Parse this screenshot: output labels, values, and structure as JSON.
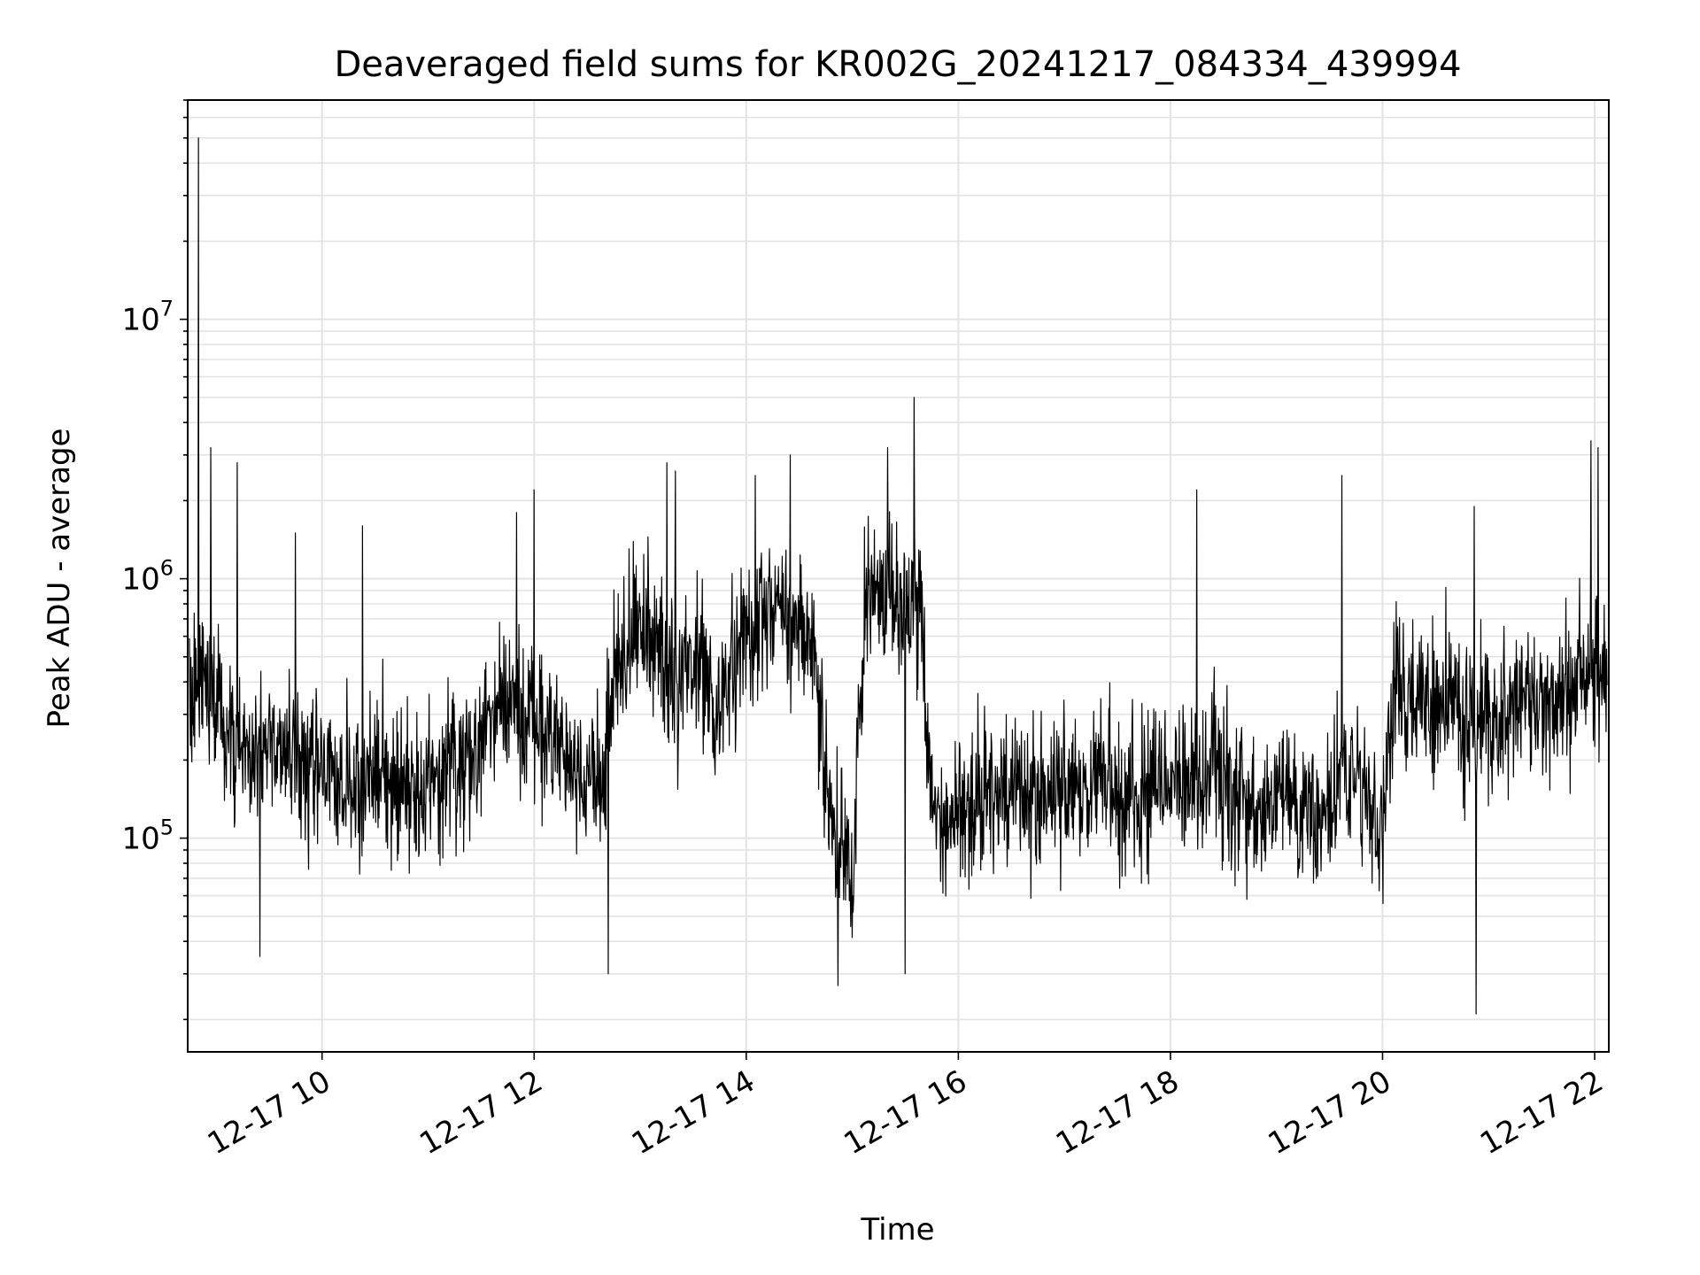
{
  "chart_data": {
    "type": "line",
    "title": "Deaveraged field sums for KR002G_20241217_084334_439994",
    "xlabel": "Time",
    "ylabel": "Peak ADU - average",
    "yscale": "log",
    "ylim": [
      15000,
      70000000
    ],
    "xlim": [
      "2024-12-17T08:44",
      "2024-12-17T22:08"
    ],
    "grid": true,
    "x_ticks": [
      {
        "value": "2024-12-17T10:00",
        "label": "12-17 10"
      },
      {
        "value": "2024-12-17T12:00",
        "label": "12-17 12"
      },
      {
        "value": "2024-12-17T14:00",
        "label": "12-17 14"
      },
      {
        "value": "2024-12-17T16:00",
        "label": "12-17 16"
      },
      {
        "value": "2024-12-17T18:00",
        "label": "12-17 18"
      },
      {
        "value": "2024-12-17T20:00",
        "label": "12-17 20"
      },
      {
        "value": "2024-12-17T22:00",
        "label": "12-17 22"
      }
    ],
    "y_ticks": [
      {
        "value": 100000,
        "base": "10",
        "exp": "5"
      },
      {
        "value": 1000000,
        "base": "10",
        "exp": "6"
      },
      {
        "value": 10000000,
        "base": "10",
        "exp": "7"
      }
    ],
    "color": "#000000",
    "series": [
      {
        "name": "",
        "x": [
          "2024-12-17T08:45",
          "2024-12-17T08:52",
          "2024-12-17T09:00",
          "2024-12-17T09:08",
          "2024-12-17T09:15",
          "2024-12-17T09:23",
          "2024-12-17T09:30",
          "2024-12-17T09:38",
          "2024-12-17T09:45",
          "2024-12-17T09:53",
          "2024-12-17T10:00",
          "2024-12-17T10:08",
          "2024-12-17T10:15",
          "2024-12-17T10:23",
          "2024-12-17T10:30",
          "2024-12-17T10:38",
          "2024-12-17T10:45",
          "2024-12-17T10:53",
          "2024-12-17T11:00",
          "2024-12-17T11:08",
          "2024-12-17T11:15",
          "2024-12-17T11:23",
          "2024-12-17T11:30",
          "2024-12-17T11:38",
          "2024-12-17T11:45",
          "2024-12-17T11:53",
          "2024-12-17T12:00",
          "2024-12-17T12:08",
          "2024-12-17T12:15",
          "2024-12-17T12:23",
          "2024-12-17T12:30",
          "2024-12-17T12:38",
          "2024-12-17T12:45",
          "2024-12-17T12:53",
          "2024-12-17T13:00",
          "2024-12-17T13:08",
          "2024-12-17T13:15",
          "2024-12-17T13:23",
          "2024-12-17T13:30",
          "2024-12-17T13:38",
          "2024-12-17T13:45",
          "2024-12-17T13:53",
          "2024-12-17T14:00",
          "2024-12-17T14:08",
          "2024-12-17T14:15",
          "2024-12-17T14:23",
          "2024-12-17T14:30",
          "2024-12-17T14:38",
          "2024-12-17T14:45",
          "2024-12-17T14:53",
          "2024-12-17T15:00",
          "2024-12-17T15:08",
          "2024-12-17T15:15",
          "2024-12-17T15:23",
          "2024-12-17T15:30",
          "2024-12-17T15:38",
          "2024-12-17T15:45",
          "2024-12-17T15:53",
          "2024-12-17T16:00",
          "2024-12-17T16:08",
          "2024-12-17T16:15",
          "2024-12-17T16:23",
          "2024-12-17T16:30",
          "2024-12-17T16:38",
          "2024-12-17T16:45",
          "2024-12-17T16:53",
          "2024-12-17T17:00",
          "2024-12-17T17:08",
          "2024-12-17T17:15",
          "2024-12-17T17:23",
          "2024-12-17T17:30",
          "2024-12-17T17:38",
          "2024-12-17T17:45",
          "2024-12-17T17:53",
          "2024-12-17T18:00",
          "2024-12-17T18:08",
          "2024-12-17T18:15",
          "2024-12-17T18:23",
          "2024-12-17T18:30",
          "2024-12-17T18:38",
          "2024-12-17T18:45",
          "2024-12-17T18:53",
          "2024-12-17T19:00",
          "2024-12-17T19:08",
          "2024-12-17T19:15",
          "2024-12-17T19:23",
          "2024-12-17T19:30",
          "2024-12-17T19:38",
          "2024-12-17T19:45",
          "2024-12-17T19:53",
          "2024-12-17T20:00",
          "2024-12-17T20:08",
          "2024-12-17T20:15",
          "2024-12-17T20:23",
          "2024-12-17T20:30",
          "2024-12-17T20:38",
          "2024-12-17T20:45",
          "2024-12-17T20:53",
          "2024-12-17T21:00",
          "2024-12-17T21:08",
          "2024-12-17T21:15",
          "2024-12-17T21:23",
          "2024-12-17T21:30",
          "2024-12-17T21:38",
          "2024-12-17T21:45",
          "2024-12-17T21:53",
          "2024-12-17T22:00",
          "2024-12-17T22:08"
        ],
        "y": [
          300000,
          400000,
          350000,
          300000,
          220000,
          200000,
          250000,
          220000,
          200000,
          180000,
          190000,
          170000,
          160000,
          150000,
          170000,
          160000,
          150000,
          140000,
          150000,
          160000,
          180000,
          200000,
          250000,
          300000,
          350000,
          320000,
          300000,
          250000,
          220000,
          200000,
          180000,
          160000,
          400000,
          600000,
          700000,
          500000,
          450000,
          400000,
          500000,
          450000,
          300000,
          500000,
          700000,
          800000,
          900000,
          700000,
          650000,
          600000,
          150000,
          90000,
          70000,
          900000,
          1000000,
          800000,
          700000,
          900000,
          130000,
          120000,
          130000,
          140000,
          150000,
          160000,
          150000,
          140000,
          150000,
          160000,
          150000,
          140000,
          160000,
          170000,
          150000,
          140000,
          150000,
          160000,
          170000,
          160000,
          170000,
          180000,
          160000,
          150000,
          140000,
          130000,
          150000,
          140000,
          130000,
          120000,
          150000,
          160000,
          170000,
          130000,
          120000,
          400000,
          350000,
          330000,
          300000,
          350000,
          300000,
          280000,
          270000,
          300000,
          320000,
          300000,
          330000,
          350000,
          380000,
          400000,
          450000,
          430000
        ],
        "spikes": [
          {
            "x": "2024-12-17T08:50",
            "y": 50000000
          },
          {
            "x": "2024-12-17T08:57",
            "y": 3200000
          },
          {
            "x": "2024-12-17T09:12",
            "y": 2800000
          },
          {
            "x": "2024-12-17T09:45",
            "y": 1500000
          },
          {
            "x": "2024-12-17T10:23",
            "y": 1600000
          },
          {
            "x": "2024-12-17T11:50",
            "y": 1800000
          },
          {
            "x": "2024-12-17T12:00",
            "y": 2200000
          },
          {
            "x": "2024-12-17T13:15",
            "y": 2800000
          },
          {
            "x": "2024-12-17T13:20",
            "y": 2600000
          },
          {
            "x": "2024-12-17T14:05",
            "y": 2500000
          },
          {
            "x": "2024-12-17T14:25",
            "y": 3000000
          },
          {
            "x": "2024-12-17T15:20",
            "y": 3200000
          },
          {
            "x": "2024-12-17T15:35",
            "y": 5000000
          },
          {
            "x": "2024-12-17T18:15",
            "y": 2200000
          },
          {
            "x": "2024-12-17T19:37",
            "y": 2500000
          },
          {
            "x": "2024-12-17T20:52",
            "y": 1900000
          },
          {
            "x": "2024-12-17T21:58",
            "y": 3400000
          },
          {
            "x": "2024-12-17T22:02",
            "y": 3200000
          },
          {
            "x": "2024-12-17T09:25",
            "y": 35000
          },
          {
            "x": "2024-12-17T12:42",
            "y": 30000
          },
          {
            "x": "2024-12-17T14:52",
            "y": 27000
          },
          {
            "x": "2024-12-17T15:30",
            "y": 30000
          },
          {
            "x": "2024-12-17T20:53",
            "y": 21000
          }
        ]
      }
    ]
  }
}
